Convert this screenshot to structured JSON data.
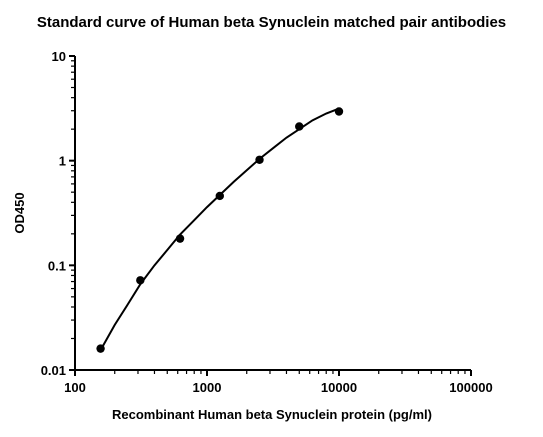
{
  "chart_data": {
    "type": "scatter",
    "title": "Standard curve of Human beta Synuclein matched pair antibodies",
    "xlabel": "Recombinant Human beta Synuclein protein (pg/ml)",
    "ylabel": "OD450",
    "x_scale": "log",
    "y_scale": "log",
    "xlim": [
      100,
      100000
    ],
    "ylim": [
      0.01,
      10
    ],
    "x_ticks": [
      100,
      1000,
      10000,
      100000
    ],
    "x_tick_labels": [
      "100",
      "1000",
      "10000",
      "100000"
    ],
    "y_ticks": [
      0.01,
      0.1,
      1,
      10
    ],
    "y_tick_labels": [
      "0.01",
      "0.1",
      "1",
      "10"
    ],
    "grid": false,
    "legend": "none",
    "series": [
      {
        "points": [
          {
            "x": 156.25,
            "y": 0.016
          },
          {
            "x": 312.5,
            "y": 0.072
          },
          {
            "x": 625,
            "y": 0.18
          },
          {
            "x": 1250,
            "y": 0.46
          },
          {
            "x": 2500,
            "y": 1.02
          },
          {
            "x": 5000,
            "y": 2.12
          },
          {
            "x": 10000,
            "y": 2.95
          }
        ],
        "fit_curve": [
          {
            "x": 156.25,
            "y": 0.0155
          },
          {
            "x": 200,
            "y": 0.027
          },
          {
            "x": 250,
            "y": 0.042
          },
          {
            "x": 312.5,
            "y": 0.066
          },
          {
            "x": 400,
            "y": 0.1
          },
          {
            "x": 500,
            "y": 0.14
          },
          {
            "x": 625,
            "y": 0.197
          },
          {
            "x": 800,
            "y": 0.27
          },
          {
            "x": 1000,
            "y": 0.36
          },
          {
            "x": 1250,
            "y": 0.47
          },
          {
            "x": 1600,
            "y": 0.63
          },
          {
            "x": 2000,
            "y": 0.81
          },
          {
            "x": 2500,
            "y": 1.04
          },
          {
            "x": 3200,
            "y": 1.33
          },
          {
            "x": 4000,
            "y": 1.66
          },
          {
            "x": 5000,
            "y": 2.0
          },
          {
            "x": 6300,
            "y": 2.43
          },
          {
            "x": 8000,
            "y": 2.82
          },
          {
            "x": 10000,
            "y": 3.15
          }
        ],
        "color": "#000000"
      }
    ]
  }
}
